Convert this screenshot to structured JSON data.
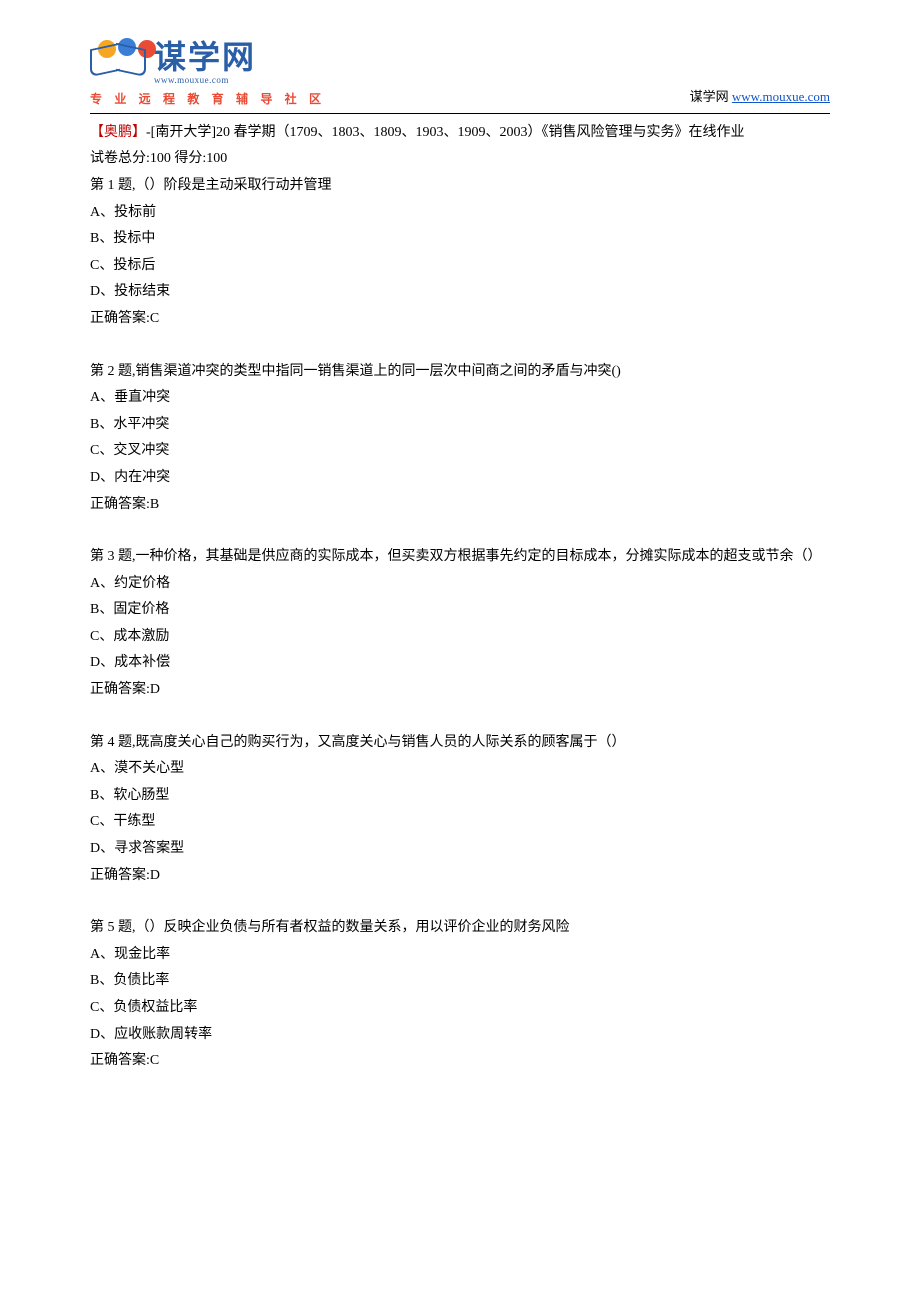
{
  "header": {
    "logo_cn": "谋学网",
    "logo_url": "www.mouxue.com",
    "tagline": "专 业 远 程 教 育 辅 导 社 区",
    "right_label": "谋学网",
    "right_url": "www.mouxue.com"
  },
  "intro": {
    "source_prefix": "【奥鹏】",
    "source_text": "-[南开大学]20 春学期（1709、1803、1809、1903、1909、2003）《销售风险管理与实务》在线作业",
    "score_line": "试卷总分:100      得分:100"
  },
  "questions": [
    {
      "title": "第 1 题,（）阶段是主动采取行动并管理",
      "options": [
        "A、投标前",
        "B、投标中",
        "C、投标后",
        "D、投标结束"
      ],
      "answer": "正确答案:C"
    },
    {
      "title": "第 2 题,销售渠道冲突的类型中指同一销售渠道上的同一层次中间商之间的矛盾与冲突()",
      "options": [
        "A、垂直冲突",
        "B、水平冲突",
        "C、交叉冲突",
        "D、内在冲突"
      ],
      "answer": "正确答案:B"
    },
    {
      "title": "第 3 题,一种价格，其基础是供应商的实际成本，但买卖双方根据事先约定的目标成本，分摊实际成本的超支或节余（）",
      "options": [
        "A、约定价格",
        "B、固定价格",
        "C、成本激励",
        "D、成本补偿"
      ],
      "answer": "正确答案:D"
    },
    {
      "title": "第 4 题,既高度关心自己的购买行为，又高度关心与销售人员的人际关系的顾客属于（）",
      "options": [
        "A、漠不关心型",
        "B、软心肠型",
        "C、干练型",
        "D、寻求答案型"
      ],
      "answer": "正确答案:D"
    },
    {
      "title": "第 5 题,（）反映企业负债与所有者权益的数量关系，用以评价企业的财务风险",
      "options": [
        "A、现金比率",
        "B、负债比率",
        "C、负债权益比率",
        "D、应收账款周转率"
      ],
      "answer": "正确答案:C"
    }
  ]
}
